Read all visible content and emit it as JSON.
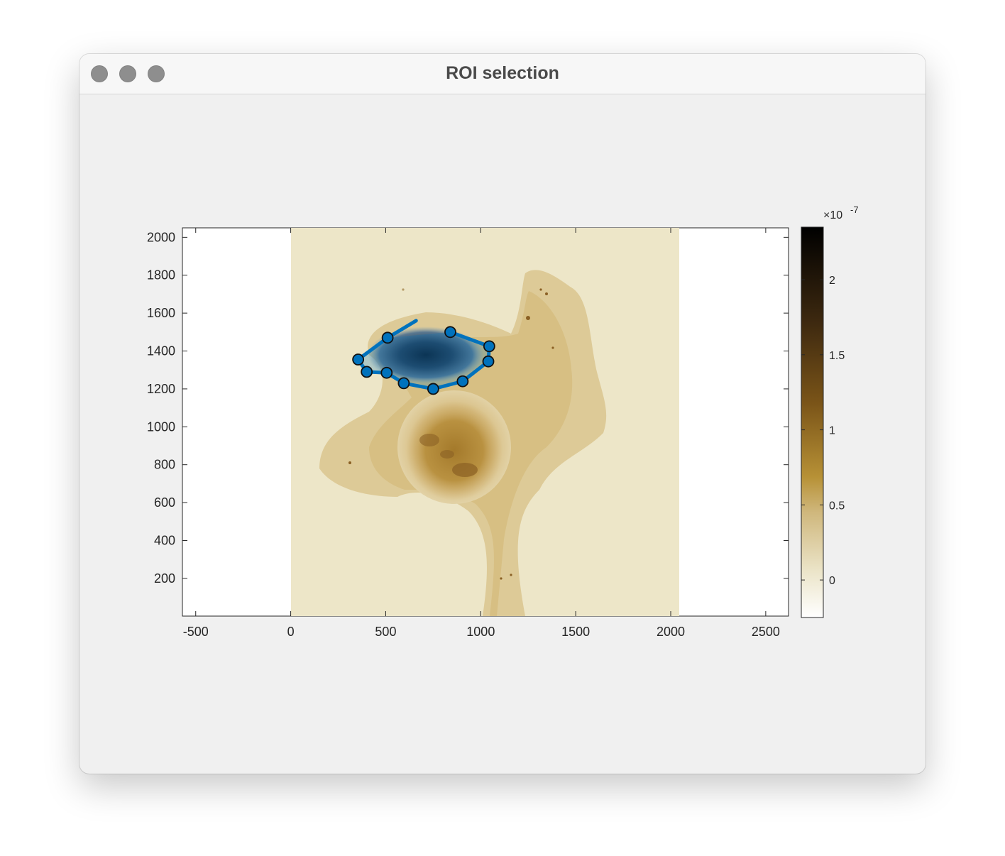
{
  "window": {
    "title": "ROI selection"
  },
  "axes": {
    "x_ticks": [
      "-500",
      "0",
      "500",
      "1000",
      "1500",
      "2000",
      "2500"
    ],
    "y_ticks": [
      "2000",
      "1800",
      "1600",
      "1400",
      "1200",
      "1000",
      "800",
      "600",
      "400",
      "200"
    ],
    "xlim": [
      -570,
      2620
    ],
    "ylim": [
      1,
      2050
    ]
  },
  "colorbar": {
    "exponent_prefix": "×10",
    "exponent": "-7",
    "ticks": [
      "2",
      "1.5",
      "1",
      "0.5",
      "0"
    ],
    "range": [
      -0.25,
      2.35
    ],
    "colors": {
      "low": "#ffffff",
      "mid": "#b08a3a",
      "high": "#000000"
    }
  },
  "roi": {
    "color": "#0072bd",
    "vertices": [
      [
        510,
        1470
      ],
      [
        355,
        1355
      ],
      [
        400,
        1290
      ],
      [
        505,
        1285
      ],
      [
        595,
        1230
      ],
      [
        750,
        1200
      ],
      [
        905,
        1240
      ],
      [
        1040,
        1345
      ],
      [
        1045,
        1425
      ],
      [
        840,
        1500
      ]
    ],
    "drawing_tail": [
      660,
      1560
    ]
  }
}
